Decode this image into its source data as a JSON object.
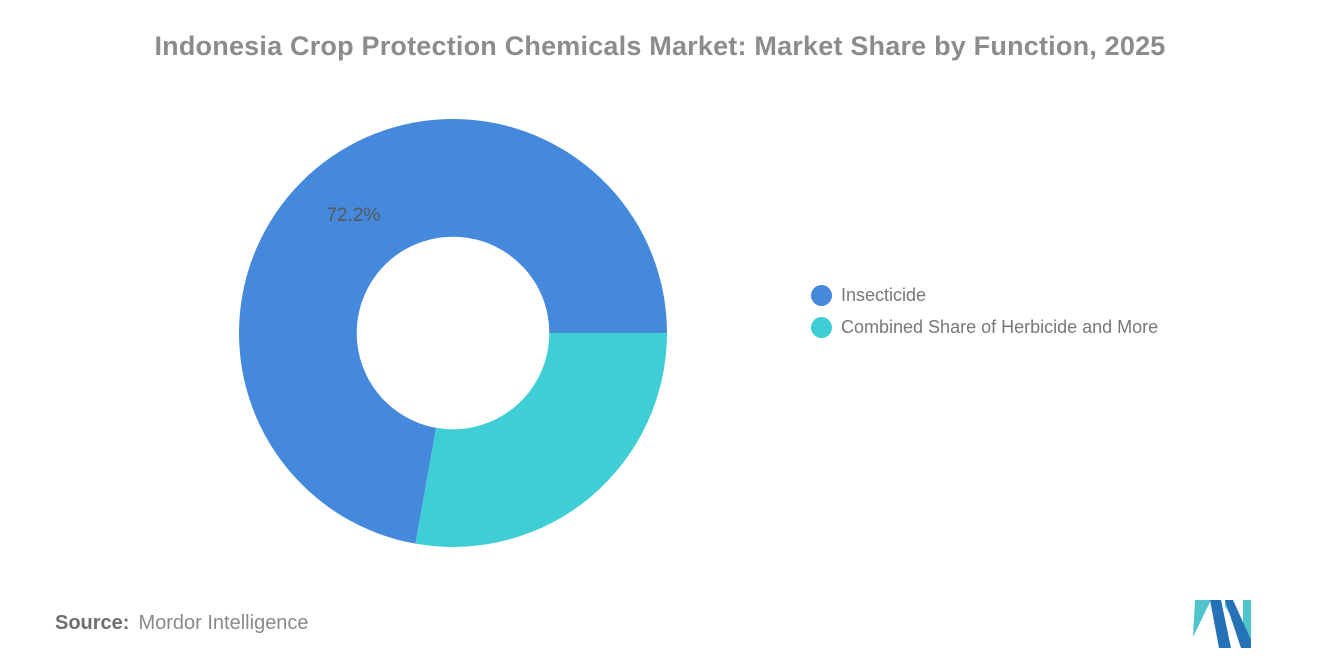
{
  "title": "Indonesia Crop Protection Chemicals Market: Market Share by Function, 2025",
  "chart_data": {
    "type": "pie",
    "subtype": "donut",
    "title": "Indonesia Crop Protection Chemicals Market: Market Share by Function, 2025",
    "slices": [
      {
        "name": "Insecticide",
        "value": 72.2,
        "color": "#4489dc",
        "label": "72.2%"
      },
      {
        "name": "Combined Share of Herbicide and More",
        "value": 27.8,
        "color": "#3fced6",
        "label": ""
      }
    ],
    "total": 100,
    "donut_hole_ratio": 0.45,
    "start_angle_deg": 190.1,
    "legend_position": "right",
    "labels_color": "#595959",
    "grid": false
  },
  "legend": {
    "items": [
      {
        "label": "Insecticide",
        "color": "#4489dc"
      },
      {
        "label": "Combined Share of Herbicide and More",
        "color": "#3fced6"
      }
    ]
  },
  "source": {
    "label": "Source:",
    "value": "Mordor Intelligence"
  },
  "logo": {
    "alt": "Mordor Intelligence logo",
    "teal": "#4fc4cb",
    "navy": "#2472b5"
  },
  "colors": {
    "background": "#ffffff",
    "title": "#8c8c8c",
    "legend_text": "#75787b",
    "source_label": "#6f6f6f",
    "source_value": "#8a8a8a"
  }
}
